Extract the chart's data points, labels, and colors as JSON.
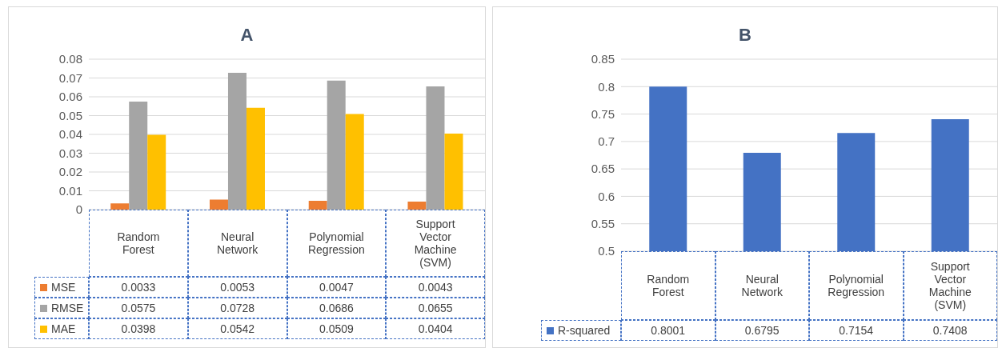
{
  "chart_data": [
    {
      "type": "bar",
      "title": "A",
      "categories": [
        "Random Forest",
        "Neural Network",
        "Polynomial Regression",
        "Support Vector Machine (SVM)"
      ],
      "series": [
        {
          "name": "MSE",
          "color": "#ed7d31",
          "values": [
            0.0033,
            0.0053,
            0.0047,
            0.0043
          ]
        },
        {
          "name": "RMSE",
          "color": "#a5a5a5",
          "values": [
            0.0575,
            0.0728,
            0.0686,
            0.0655
          ]
        },
        {
          "name": "MAE",
          "color": "#ffc000",
          "values": [
            0.0398,
            0.0542,
            0.0509,
            0.0404
          ]
        }
      ],
      "ylim": [
        0,
        0.08
      ],
      "yticks": [
        0,
        0.01,
        0.02,
        0.03,
        0.04,
        0.05,
        0.06,
        0.07,
        0.08
      ],
      "grid": "y",
      "data_labels": true,
      "legend": "bottom"
    },
    {
      "type": "bar",
      "title": "B",
      "categories": [
        "Random Forest",
        "Neural Network",
        "Polynomial Regression",
        "Support Vector Machine (SVM)"
      ],
      "series": [
        {
          "name": "R-squared",
          "color": "#4472c4",
          "values": [
            0.8001,
            0.6795,
            0.7154,
            0.7408
          ]
        }
      ],
      "ylim": [
        0.5,
        0.85
      ],
      "yticks": [
        0.5,
        0.55,
        0.6,
        0.65,
        0.7,
        0.75,
        0.8,
        0.85
      ],
      "grid": "y",
      "data_labels": true,
      "legend": "bottom"
    }
  ]
}
